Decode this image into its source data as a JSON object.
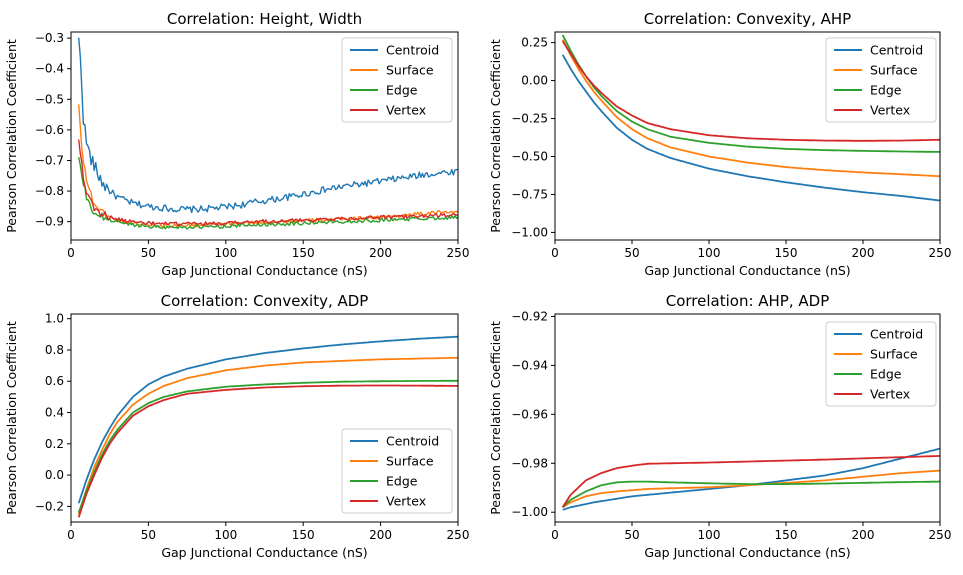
{
  "chart_data": [
    {
      "type": "line",
      "title": "Correlation: Height, Width",
      "xlabel": "Gap Junctional Conductance (nS)",
      "ylabel": "Pearson Correlation Coefficient",
      "xlim": [
        0,
        250
      ],
      "ylim": [
        -0.96,
        -0.28
      ],
      "xticks": [
        0,
        50,
        100,
        150,
        200,
        250
      ],
      "yticks": [
        -0.3,
        -0.4,
        -0.5,
        -0.6,
        -0.7,
        -0.8,
        -0.9
      ],
      "ytick_labels": [
        "−0.3",
        "−0.4",
        "−0.5",
        "−0.6",
        "−0.7",
        "−0.8",
        "−0.9"
      ],
      "legend_position": "upper-right",
      "noisy": true,
      "series": [
        {
          "name": "Centroid",
          "color": "#1f77b4",
          "x": [
            5,
            6,
            7,
            8,
            10,
            12,
            15,
            20,
            25,
            30,
            40,
            50,
            60,
            70,
            80,
            90,
            100,
            110,
            120,
            130,
            140,
            150,
            160,
            170,
            180,
            190,
            200,
            210,
            220,
            230,
            240,
            250
          ],
          "y": [
            -0.31,
            -0.36,
            -0.45,
            -0.56,
            -0.64,
            -0.68,
            -0.72,
            -0.77,
            -0.8,
            -0.82,
            -0.84,
            -0.85,
            -0.855,
            -0.86,
            -0.86,
            -0.857,
            -0.852,
            -0.845,
            -0.835,
            -0.828,
            -0.82,
            -0.81,
            -0.8,
            -0.79,
            -0.782,
            -0.775,
            -0.768,
            -0.76,
            -0.753,
            -0.745,
            -0.74,
            -0.735
          ]
        },
        {
          "name": "Surface",
          "color": "#ff7f0e",
          "x": [
            5,
            6,
            7,
            8,
            10,
            12,
            15,
            20,
            25,
            30,
            40,
            50,
            60,
            80,
            100,
            120,
            150,
            175,
            200,
            225,
            250
          ],
          "y": [
            -0.52,
            -0.58,
            -0.65,
            -0.7,
            -0.76,
            -0.8,
            -0.84,
            -0.87,
            -0.885,
            -0.895,
            -0.905,
            -0.91,
            -0.912,
            -0.912,
            -0.908,
            -0.903,
            -0.897,
            -0.892,
            -0.885,
            -0.875,
            -0.865
          ]
        },
        {
          "name": "Edge",
          "color": "#2ca02c",
          "x": [
            5,
            6,
            7,
            8,
            10,
            12,
            15,
            20,
            25,
            30,
            40,
            50,
            60,
            80,
            100,
            120,
            150,
            175,
            200,
            225,
            250
          ],
          "y": [
            -0.69,
            -0.72,
            -0.75,
            -0.78,
            -0.82,
            -0.85,
            -0.87,
            -0.885,
            -0.895,
            -0.9,
            -0.91,
            -0.915,
            -0.918,
            -0.918,
            -0.915,
            -0.91,
            -0.905,
            -0.9,
            -0.895,
            -0.89,
            -0.885
          ]
        },
        {
          "name": "Vertex",
          "color": "#d62728",
          "x": [
            5,
            6,
            7,
            8,
            10,
            12,
            15,
            20,
            25,
            30,
            40,
            50,
            60,
            80,
            100,
            120,
            150,
            175,
            200,
            225,
            250
          ],
          "y": [
            -0.63,
            -0.67,
            -0.71,
            -0.75,
            -0.8,
            -0.83,
            -0.855,
            -0.875,
            -0.885,
            -0.893,
            -0.9,
            -0.905,
            -0.907,
            -0.907,
            -0.905,
            -0.9,
            -0.895,
            -0.89,
            -0.886,
            -0.882,
            -0.878
          ]
        }
      ]
    },
    {
      "type": "line",
      "title": "Correlation: Convexity, AHP",
      "xlabel": "Gap Junctional Conductance (nS)",
      "ylabel": "Pearson Correlation Coefficient",
      "xlim": [
        0,
        250
      ],
      "ylim": [
        -1.05,
        0.32
      ],
      "xticks": [
        0,
        50,
        100,
        150,
        200,
        250
      ],
      "yticks": [
        0.25,
        0.0,
        -0.25,
        -0.5,
        -0.75,
        -1.0
      ],
      "ytick_labels": [
        "0.25",
        "0.00",
        "−0.25",
        "−0.50",
        "−0.75",
        "−1.00"
      ],
      "legend_position": "upper-right",
      "noisy": false,
      "series": [
        {
          "name": "Centroid",
          "color": "#1f77b4",
          "x": [
            5,
            10,
            15,
            20,
            25,
            30,
            40,
            50,
            60,
            75,
            100,
            125,
            150,
            175,
            200,
            225,
            250
          ],
          "y": [
            0.17,
            0.08,
            0.0,
            -0.07,
            -0.14,
            -0.2,
            -0.31,
            -0.39,
            -0.45,
            -0.51,
            -0.58,
            -0.63,
            -0.67,
            -0.705,
            -0.735,
            -0.76,
            -0.79
          ]
        },
        {
          "name": "Surface",
          "color": "#ff7f0e",
          "x": [
            5,
            10,
            15,
            20,
            25,
            30,
            40,
            50,
            60,
            75,
            100,
            125,
            150,
            175,
            200,
            225,
            250
          ],
          "y": [
            0.27,
            0.17,
            0.08,
            0.0,
            -0.07,
            -0.13,
            -0.24,
            -0.32,
            -0.38,
            -0.44,
            -0.5,
            -0.54,
            -0.57,
            -0.59,
            -0.605,
            -0.617,
            -0.63
          ]
        },
        {
          "name": "Edge",
          "color": "#2ca02c",
          "x": [
            5,
            10,
            15,
            20,
            25,
            30,
            40,
            50,
            60,
            75,
            100,
            125,
            150,
            175,
            200,
            225,
            250
          ],
          "y": [
            0.3,
            0.2,
            0.11,
            0.03,
            -0.04,
            -0.1,
            -0.2,
            -0.27,
            -0.32,
            -0.37,
            -0.41,
            -0.435,
            -0.45,
            -0.458,
            -0.463,
            -0.467,
            -0.47
          ]
        },
        {
          "name": "Vertex",
          "color": "#d62728",
          "x": [
            5,
            10,
            15,
            20,
            25,
            30,
            40,
            50,
            60,
            75,
            100,
            125,
            150,
            175,
            200,
            225,
            250
          ],
          "y": [
            0.26,
            0.18,
            0.1,
            0.03,
            -0.03,
            -0.08,
            -0.17,
            -0.23,
            -0.28,
            -0.32,
            -0.36,
            -0.38,
            -0.39,
            -0.395,
            -0.397,
            -0.395,
            -0.39
          ]
        }
      ]
    },
    {
      "type": "line",
      "title": "Correlation: Convexity, ADP",
      "xlabel": "Gap Junctional Conductance (nS)",
      "ylabel": "Pearson Correlation Coefficient",
      "xlim": [
        0,
        250
      ],
      "ylim": [
        -0.3,
        1.03
      ],
      "xticks": [
        0,
        50,
        100,
        150,
        200,
        250
      ],
      "yticks": [
        1.0,
        0.8,
        0.6,
        0.4,
        0.2,
        0.0,
        -0.2
      ],
      "ytick_labels": [
        "1.0",
        "0.8",
        "0.6",
        "0.4",
        "0.2",
        "0.0",
        "−0.2"
      ],
      "legend_position": "lower-right",
      "noisy": false,
      "series": [
        {
          "name": "Centroid",
          "color": "#1f77b4",
          "x": [
            5,
            10,
            15,
            20,
            25,
            30,
            40,
            50,
            60,
            75,
            100,
            125,
            150,
            175,
            200,
            225,
            250
          ],
          "y": [
            -0.18,
            -0.03,
            0.1,
            0.21,
            0.3,
            0.38,
            0.5,
            0.58,
            0.63,
            0.68,
            0.74,
            0.78,
            0.81,
            0.835,
            0.855,
            0.872,
            0.885
          ]
        },
        {
          "name": "Surface",
          "color": "#ff7f0e",
          "x": [
            5,
            10,
            15,
            20,
            25,
            30,
            40,
            50,
            60,
            75,
            100,
            125,
            150,
            175,
            200,
            225,
            250
          ],
          "y": [
            -0.25,
            -0.09,
            0.05,
            0.16,
            0.26,
            0.34,
            0.45,
            0.52,
            0.57,
            0.62,
            0.67,
            0.7,
            0.72,
            0.73,
            0.74,
            0.745,
            0.75
          ]
        },
        {
          "name": "Edge",
          "color": "#2ca02c",
          "x": [
            5,
            10,
            15,
            20,
            25,
            30,
            40,
            50,
            60,
            75,
            100,
            125,
            150,
            175,
            200,
            225,
            250
          ],
          "y": [
            -0.24,
            -0.1,
            0.02,
            0.13,
            0.22,
            0.29,
            0.4,
            0.46,
            0.5,
            0.535,
            0.565,
            0.58,
            0.59,
            0.597,
            0.6,
            0.602,
            0.603
          ]
        },
        {
          "name": "Vertex",
          "color": "#d62728",
          "x": [
            5,
            10,
            15,
            20,
            25,
            30,
            40,
            50,
            60,
            75,
            100,
            125,
            150,
            175,
            200,
            225,
            250
          ],
          "y": [
            -0.27,
            -0.12,
            0.0,
            0.11,
            0.2,
            0.27,
            0.38,
            0.44,
            0.48,
            0.52,
            0.545,
            0.56,
            0.568,
            0.572,
            0.573,
            0.572,
            0.57
          ]
        }
      ]
    },
    {
      "type": "line",
      "title": "Correlation: AHP, ADP",
      "xlabel": "Gap Junctional Conductance (nS)",
      "ylabel": "Pearson Correlation Coefficient",
      "xlim": [
        0,
        250
      ],
      "ylim": [
        -1.004,
        -0.919
      ],
      "xticks": [
        0,
        50,
        100,
        150,
        200,
        250
      ],
      "yticks": [
        -0.92,
        -0.94,
        -0.96,
        -0.98,
        -1.0
      ],
      "ytick_labels": [
        "−0.92",
        "−0.94",
        "−0.96",
        "−0.98",
        "−1.00"
      ],
      "legend_position": "upper-right",
      "noisy": false,
      "series": [
        {
          "name": "Centroid",
          "color": "#1f77b4",
          "x": [
            5,
            10,
            25,
            50,
            75,
            100,
            125,
            150,
            175,
            200,
            225,
            250
          ],
          "y": [
            -0.999,
            -0.998,
            -0.996,
            -0.9935,
            -0.992,
            -0.9905,
            -0.989,
            -0.987,
            -0.985,
            -0.982,
            -0.978,
            -0.974
          ]
        },
        {
          "name": "Surface",
          "color": "#ff7f0e",
          "x": [
            5,
            10,
            20,
            30,
            40,
            50,
            60,
            75,
            100,
            125,
            150,
            175,
            200,
            225,
            250
          ],
          "y": [
            -0.998,
            -0.996,
            -0.9935,
            -0.9922,
            -0.9915,
            -0.991,
            -0.9905,
            -0.9902,
            -0.9898,
            -0.989,
            -0.988,
            -0.987,
            -0.9855,
            -0.984,
            -0.983
          ]
        },
        {
          "name": "Edge",
          "color": "#2ca02c",
          "x": [
            5,
            10,
            20,
            30,
            40,
            50,
            60,
            75,
            100,
            125,
            150,
            175,
            200,
            225,
            250
          ],
          "y": [
            -0.998,
            -0.995,
            -0.9915,
            -0.989,
            -0.9878,
            -0.9875,
            -0.9875,
            -0.9878,
            -0.9882,
            -0.9885,
            -0.9885,
            -0.9883,
            -0.988,
            -0.9877,
            -0.9875
          ]
        },
        {
          "name": "Vertex",
          "color": "#d62728",
          "x": [
            5,
            10,
            20,
            30,
            40,
            50,
            60,
            75,
            100,
            125,
            150,
            175,
            200,
            225,
            250
          ],
          "y": [
            -0.998,
            -0.993,
            -0.987,
            -0.984,
            -0.982,
            -0.981,
            -0.9802,
            -0.98,
            -0.9797,
            -0.9793,
            -0.9789,
            -0.9785,
            -0.978,
            -0.9775,
            -0.977
          ]
        }
      ]
    }
  ]
}
